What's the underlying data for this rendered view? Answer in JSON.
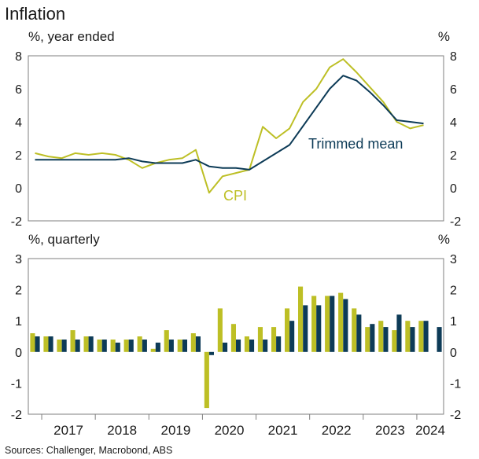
{
  "title": "Inflation",
  "source": "Sources: Challenger, Macrobond, ABS",
  "colors": {
    "cpi": "#bdbf25",
    "trimmed_mean": "#0d3b57",
    "axis": "#7f7f7f"
  },
  "chart_data": [
    {
      "type": "line",
      "unit_left": "%, year ended",
      "unit_right": "%",
      "ylim": [
        -2,
        8
      ],
      "yticks": [
        "-2",
        "0",
        "2",
        "4",
        "6",
        "8"
      ],
      "x": [
        "Dec-16",
        "Mar-17",
        "Jun-17",
        "Sep-17",
        "Dec-17",
        "Mar-18",
        "Jun-18",
        "Sep-18",
        "Dec-18",
        "Mar-19",
        "Jun-19",
        "Sep-19",
        "Dec-19",
        "Mar-20",
        "Jun-20",
        "Sep-20",
        "Dec-20",
        "Mar-21",
        "Jun-21",
        "Sep-21",
        "Dec-21",
        "Mar-22",
        "Jun-22",
        "Sep-22",
        "Dec-22",
        "Mar-23",
        "Jun-23",
        "Sep-23",
        "Dec-23",
        "Mar-24",
        "Jun-24"
      ],
      "series": [
        {
          "name": "CPI",
          "color_key": "cpi",
          "values": [
            2.1,
            1.9,
            1.8,
            2.1,
            2.0,
            2.1,
            2.0,
            1.7,
            1.2,
            1.5,
            1.7,
            1.8,
            2.3,
            -0.3,
            0.7,
            0.9,
            1.1,
            3.7,
            3.0,
            3.6,
            5.2,
            6.0,
            7.3,
            7.8,
            7.0,
            6.1,
            5.2,
            4.0,
            3.6,
            3.8,
            null
          ]
        },
        {
          "name": "Trimmed mean",
          "color_key": "trimmed_mean",
          "values": [
            1.7,
            1.7,
            1.7,
            1.7,
            1.7,
            1.7,
            1.7,
            1.8,
            1.6,
            1.5,
            1.5,
            1.5,
            1.7,
            1.3,
            1.2,
            1.2,
            1.1,
            null,
            null,
            2.6,
            null,
            null,
            6.0,
            6.8,
            6.5,
            5.8,
            5.0,
            4.1,
            4.0,
            3.9,
            null
          ]
        }
      ],
      "series_labels": {
        "cpi": "CPI",
        "trimmed_mean": "Trimmed mean"
      }
    },
    {
      "type": "bar",
      "unit_left": "%, quarterly",
      "unit_right": "%",
      "ylim": [
        -2,
        3
      ],
      "yticks": [
        "-2",
        "-1",
        "0",
        "1",
        "2",
        "3"
      ],
      "categories": [
        "Q4-16",
        "Q1-17",
        "Q2-17",
        "Q3-17",
        "Q4-17",
        "Q1-18",
        "Q2-18",
        "Q3-18",
        "Q4-18",
        "Q1-19",
        "Q2-19",
        "Q3-19",
        "Q4-19",
        "Q1-20",
        "Q2-20",
        "Q3-20",
        "Q4-20",
        "Q1-21",
        "Q2-21",
        "Q3-21",
        "Q4-21",
        "Q1-22",
        "Q2-22",
        "Q3-22",
        "Q4-22",
        "Q1-23",
        "Q2-23",
        "Q3-23",
        "Q4-23",
        "Q1-24",
        "Q2-24"
      ],
      "series": [
        {
          "name": "CPI",
          "color_key": "cpi",
          "values": [
            0.6,
            0.5,
            0.4,
            0.7,
            0.5,
            0.4,
            0.4,
            0.4,
            0.5,
            0.1,
            0.7,
            0.4,
            0.6,
            -1.8,
            1.4,
            0.9,
            0.5,
            0.8,
            0.8,
            1.4,
            2.1,
            1.8,
            1.8,
            1.9,
            1.4,
            0.8,
            1.0,
            0.7,
            1.0,
            1.0,
            0.0
          ]
        },
        {
          "name": "Trimmed mean",
          "color_key": "trimmed_mean",
          "values": [
            0.5,
            0.5,
            0.4,
            0.4,
            0.5,
            0.4,
            0.3,
            0.4,
            0.4,
            0.3,
            0.4,
            0.4,
            0.5,
            -0.1,
            0.3,
            0.4,
            0.4,
            0.4,
            0.5,
            1.0,
            1.5,
            1.5,
            1.8,
            1.7,
            1.2,
            0.9,
            0.8,
            1.2,
            0.8,
            1.0,
            0.8
          ]
        }
      ]
    }
  ],
  "x_axis": {
    "years": [
      "2017",
      "2018",
      "2019",
      "2020",
      "2021",
      "2022",
      "2023",
      "2024"
    ]
  }
}
